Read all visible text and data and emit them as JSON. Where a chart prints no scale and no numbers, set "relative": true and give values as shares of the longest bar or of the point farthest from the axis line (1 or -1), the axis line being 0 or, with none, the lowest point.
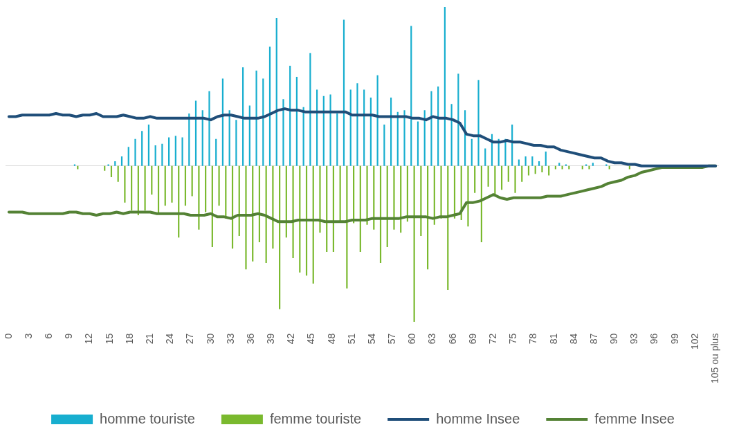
{
  "chart_data": {
    "type": "bar",
    "relative": true,
    "legend": "bottom",
    "categories": [
      "0",
      null,
      null,
      "3",
      null,
      null,
      "6",
      null,
      null,
      "9",
      null,
      null,
      "12",
      null,
      null,
      "15",
      null,
      null,
      "18",
      null,
      null,
      "21",
      null,
      null,
      "24",
      null,
      null,
      "27",
      null,
      null,
      "30",
      null,
      null,
      "33",
      null,
      null,
      "36",
      null,
      null,
      "39",
      null,
      null,
      "42",
      null,
      null,
      "45",
      null,
      null,
      "48",
      null,
      null,
      "51",
      null,
      null,
      "54",
      null,
      null,
      "57",
      null,
      null,
      "60",
      null,
      null,
      "63",
      null,
      null,
      "66",
      null,
      null,
      "69",
      null,
      null,
      "72",
      null,
      null,
      "75",
      null,
      null,
      "78",
      null,
      null,
      "81",
      null,
      null,
      "84",
      null,
      null,
      "87",
      null,
      null,
      "90",
      null,
      null,
      "93",
      null,
      null,
      "96",
      null,
      null,
      "99",
      null,
      null,
      "102",
      null,
      null,
      "105 ou plus"
    ],
    "series": [
      {
        "name": "homme touriste",
        "color": "#17aecf",
        "values": [
          0,
          0,
          0,
          0,
          0,
          0,
          0,
          0,
          0,
          0,
          0.01,
          0,
          0,
          0,
          0,
          0.01,
          0.03,
          0.06,
          0.12,
          0.17,
          0.22,
          0.26,
          0.13,
          0.14,
          0.18,
          0.19,
          0.18,
          0.33,
          0.41,
          0.35,
          0.47,
          0.17,
          0.55,
          0.35,
          0.29,
          0.62,
          0.38,
          0.6,
          0.55,
          0.75,
          0.93,
          0.42,
          0.63,
          0.56,
          0.37,
          0.71,
          0.48,
          0.44,
          0.45,
          0.33,
          0.92,
          0.48,
          0.52,
          0.48,
          0.43,
          0.57,
          0.26,
          0.43,
          0.34,
          0.35,
          0.88,
          0.28,
          0.35,
          0.47,
          0.5,
          1,
          0.39,
          0.58,
          0.35,
          0.17,
          0.54,
          0.11,
          0.2,
          0.17,
          0.17,
          0.26,
          0.04,
          0.06,
          0.06,
          0.03,
          0.09,
          0,
          0.02,
          0.01,
          0,
          0,
          0.01,
          0.02,
          0,
          0.01,
          0,
          0,
          0,
          0,
          0,
          0,
          0,
          0,
          0,
          0,
          0,
          0,
          0,
          0,
          0,
          0
        ]
      },
      {
        "name": "femme touriste",
        "color": "#7ab92e",
        "values": [
          0,
          0,
          0,
          0,
          0,
          0,
          0,
          0,
          0,
          0,
          -0.02,
          0,
          0,
          0,
          -0.03,
          -0.07,
          -0.1,
          -0.23,
          -0.28,
          -0.31,
          -0.28,
          -0.18,
          -0.3,
          -0.25,
          -0.23,
          -0.45,
          -0.25,
          -0.19,
          -0.4,
          -0.29,
          -0.51,
          -0.25,
          -0.33,
          -0.52,
          -0.44,
          -0.65,
          -0.6,
          -0.48,
          -0.61,
          -0.52,
          -0.9,
          -0.45,
          -0.58,
          -0.67,
          -0.69,
          -0.74,
          -0.42,
          -0.54,
          -0.54,
          -0.35,
          -0.77,
          -0.36,
          -0.54,
          -0.37,
          -0.4,
          -0.61,
          -0.51,
          -0.4,
          -0.42,
          -0.35,
          -0.98,
          -0.44,
          -0.65,
          -0.37,
          -0.33,
          -0.78,
          -0.33,
          -0.34,
          -0.38,
          -0.17,
          -0.48,
          -0.13,
          -0.18,
          -0.15,
          -0.1,
          -0.17,
          -0.1,
          -0.06,
          -0.05,
          -0.04,
          -0.06,
          -0.02,
          -0.02,
          -0.02,
          0,
          -0.02,
          -0.02,
          0,
          0,
          -0.02,
          0,
          0,
          -0.02,
          0,
          0,
          0,
          0,
          0,
          0,
          0,
          0,
          0,
          0,
          0,
          0,
          0
        ]
      },
      {
        "name": "homme Insee",
        "type": "line",
        "color": "#1f4e79",
        "values": [
          0.31,
          0.31,
          0.32,
          0.32,
          0.32,
          0.32,
          0.32,
          0.33,
          0.32,
          0.32,
          0.31,
          0.32,
          0.32,
          0.33,
          0.31,
          0.31,
          0.31,
          0.32,
          0.31,
          0.3,
          0.3,
          0.31,
          0.3,
          0.3,
          0.3,
          0.3,
          0.3,
          0.3,
          0.3,
          0.3,
          0.29,
          0.31,
          0.32,
          0.32,
          0.31,
          0.3,
          0.3,
          0.3,
          0.31,
          0.33,
          0.35,
          0.36,
          0.35,
          0.35,
          0.34,
          0.34,
          0.34,
          0.34,
          0.34,
          0.34,
          0.34,
          0.32,
          0.32,
          0.32,
          0.32,
          0.31,
          0.31,
          0.31,
          0.31,
          0.31,
          0.3,
          0.3,
          0.29,
          0.31,
          0.3,
          0.3,
          0.29,
          0.27,
          0.2,
          0.19,
          0.19,
          0.17,
          0.15,
          0.15,
          0.16,
          0.15,
          0.15,
          0.14,
          0.13,
          0.13,
          0.12,
          0.12,
          0.1,
          0.09,
          0.08,
          0.07,
          0.06,
          0.05,
          0.05,
          0.03,
          0.02,
          0.02,
          0.01,
          0.01,
          0,
          0,
          0,
          0,
          0,
          0,
          0,
          0,
          0,
          0,
          0,
          0
        ]
      },
      {
        "name": "femme Insee",
        "type": "line",
        "color": "#548235",
        "values": [
          -0.29,
          -0.29,
          -0.29,
          -0.3,
          -0.3,
          -0.3,
          -0.3,
          -0.3,
          -0.3,
          -0.29,
          -0.29,
          -0.3,
          -0.3,
          -0.31,
          -0.3,
          -0.3,
          -0.29,
          -0.3,
          -0.29,
          -0.29,
          -0.29,
          -0.29,
          -0.3,
          -0.3,
          -0.3,
          -0.3,
          -0.3,
          -0.31,
          -0.31,
          -0.31,
          -0.3,
          -0.32,
          -0.32,
          -0.33,
          -0.31,
          -0.31,
          -0.31,
          -0.3,
          -0.31,
          -0.33,
          -0.35,
          -0.35,
          -0.35,
          -0.34,
          -0.34,
          -0.34,
          -0.34,
          -0.35,
          -0.35,
          -0.35,
          -0.35,
          -0.34,
          -0.34,
          -0.34,
          -0.33,
          -0.33,
          -0.33,
          -0.33,
          -0.33,
          -0.32,
          -0.32,
          -0.32,
          -0.32,
          -0.33,
          -0.32,
          -0.32,
          -0.31,
          -0.3,
          -0.23,
          -0.23,
          -0.22,
          -0.2,
          -0.18,
          -0.2,
          -0.21,
          -0.2,
          -0.2,
          -0.2,
          -0.2,
          -0.2,
          -0.19,
          -0.19,
          -0.19,
          -0.18,
          -0.17,
          -0.16,
          -0.15,
          -0.14,
          -0.13,
          -0.11,
          -0.1,
          -0.09,
          -0.07,
          -0.06,
          -0.04,
          -0.03,
          -0.02,
          -0.01,
          -0.01,
          -0.01,
          -0.01,
          -0.01,
          -0.01,
          -0.01,
          0,
          0
        ]
      }
    ]
  }
}
